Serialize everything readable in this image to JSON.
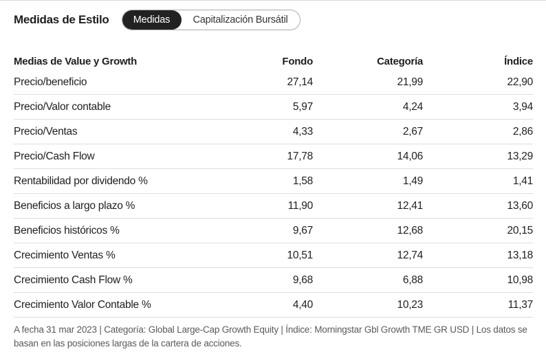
{
  "header": {
    "title": "Medidas de Estilo",
    "tabs": [
      {
        "label": "Medidas",
        "active": true
      },
      {
        "label": "Capitalización Bursátil",
        "active": false
      }
    ]
  },
  "table": {
    "columns": [
      "Medias de Value y Growth",
      "Fondo",
      "Categoría",
      "Índice"
    ],
    "rows": [
      {
        "label": "Precio/beneficio",
        "fondo": "27,14",
        "categoria": "21,99",
        "indice": "22,90"
      },
      {
        "label": "Precio/Valor contable",
        "fondo": "5,97",
        "categoria": "4,24",
        "indice": "3,94"
      },
      {
        "label": "Precio/Ventas",
        "fondo": "4,33",
        "categoria": "2,67",
        "indice": "2,86"
      },
      {
        "label": "Precio/Cash Flow",
        "fondo": "17,78",
        "categoria": "14,06",
        "indice": "13,29"
      },
      {
        "label": "Rentabilidad por dividendo %",
        "fondo": "1,58",
        "categoria": "1,49",
        "indice": "1,41"
      },
      {
        "label": "Beneficios a largo plazo %",
        "fondo": "11,90",
        "categoria": "12,41",
        "indice": "13,60"
      },
      {
        "label": "Beneficios históricos %",
        "fondo": "9,67",
        "categoria": "12,68",
        "indice": "20,15"
      },
      {
        "label": "Crecimiento Ventas %",
        "fondo": "10,51",
        "categoria": "12,74",
        "indice": "13,18"
      },
      {
        "label": "Crecimiento Cash Flow %",
        "fondo": "9,68",
        "categoria": "6,88",
        "indice": "10,98"
      },
      {
        "label": "Crecimiento Valor Contable %",
        "fondo": "4,40",
        "categoria": "10,23",
        "indice": "11,37"
      }
    ]
  },
  "footnote": "A fecha 31 mar 2023 | Categoría: Global Large-Cap Growth Equity | Índice: Morningstar Gbl Growth TME GR USD | Los datos se basan en las posiciones largas de la cartera de acciones.",
  "colors": {
    "active_tab_bg": "#222222",
    "text": "#1e1e1e",
    "muted_text": "#5a5a5a",
    "divider": "#dcdcdc"
  }
}
